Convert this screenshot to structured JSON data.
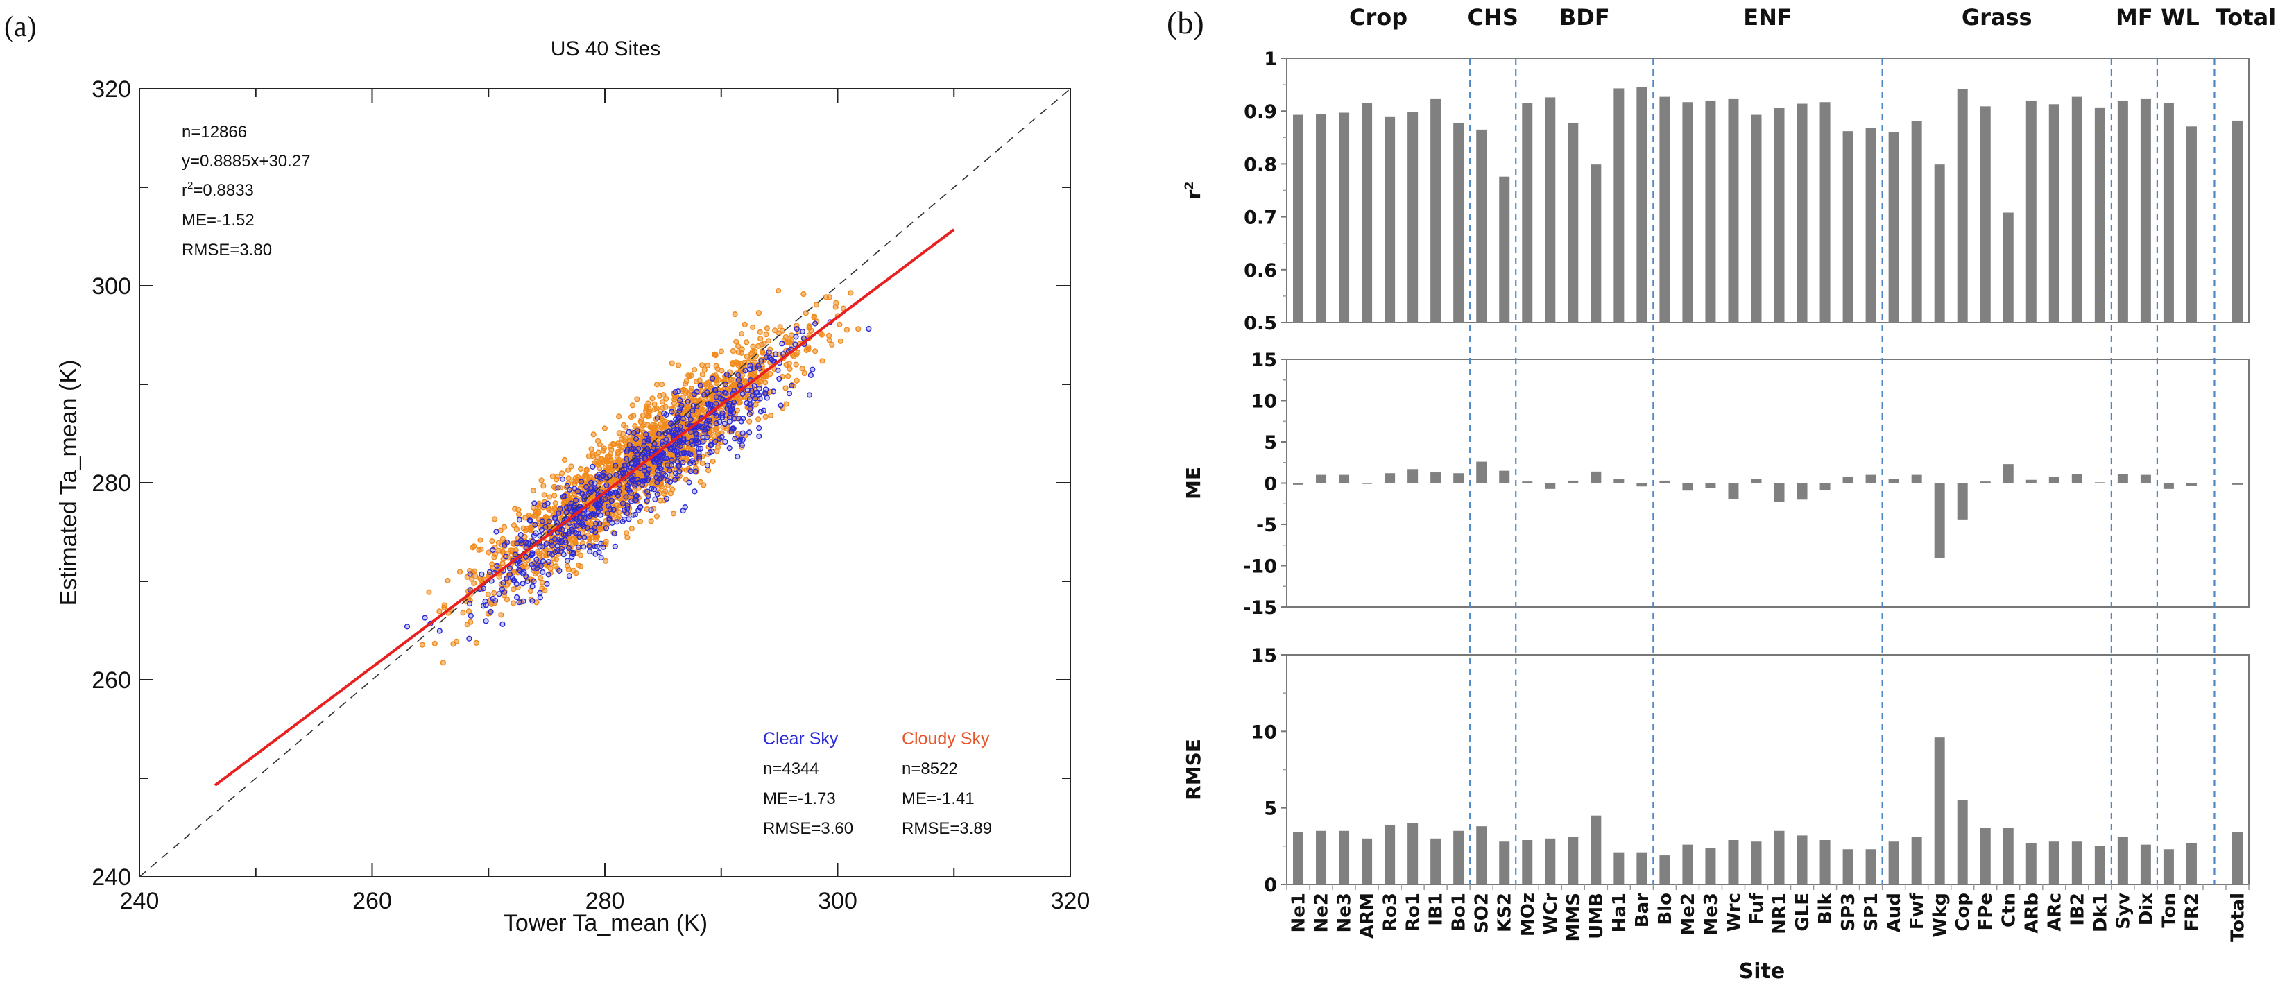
{
  "chart_data": [
    {
      "panel_label": "(a)",
      "type": "scatter",
      "title": "US 40 Sites",
      "xlabel": "Tower Ta_mean (K)",
      "ylabel": "Estimated Ta_mean (K)",
      "xlim": [
        240,
        320
      ],
      "ylim": [
        240,
        320
      ],
      "xticks": [
        "240",
        "260",
        "280",
        "300",
        "320"
      ],
      "yticks": [
        "240",
        "260",
        "280",
        "300",
        "320"
      ],
      "stats": [
        "n=12866",
        "y=0.8885x+30.27",
        "r",
        "=0.8833",
        "ME=-1.52",
        "RMSE=3.80"
      ],
      "r2_superscript": "2",
      "fit": {
        "slope": 0.8885,
        "intercept": 30.27,
        "x_range": [
          246.5,
          310
        ],
        "color": "#e82020"
      },
      "one_to_one_line": true,
      "series": [
        {
          "name": "Clear Sky",
          "color": "#2a2ad8",
          "n": 4344,
          "stats": [
            "n=4344",
            "ME=-1.73",
            "RMSE=3.60"
          ]
        },
        {
          "name": "Cloudy Sky",
          "color": "#f08a1c",
          "legend_color": "#e8542a",
          "n": 8522,
          "stats": [
            "n=8522",
            "ME=-1.41",
            "RMSE=3.89"
          ]
        }
      ]
    },
    {
      "panel_label": "(b)",
      "type": "bar",
      "xlabel": "Site",
      "bar_color": "#808080",
      "divider_color": "#4f86c6",
      "categories": [
        "Ne1",
        "Ne2",
        "Ne3",
        "ARM",
        "Ro3",
        "Ro1",
        "IB1",
        "Bo1",
        "SO2",
        "KS2",
        "MOz",
        "WCr",
        "MMS",
        "UMB",
        "Ha1",
        "Bar",
        "Blo",
        "Me2",
        "Me3",
        "Wrc",
        "Fuf",
        "NR1",
        "GLE",
        "Blk",
        "SP3",
        "SP1",
        "Aud",
        "Fwf",
        "Wkg",
        "Cop",
        "FPe",
        "Ctn",
        "ARb",
        "ARc",
        "IB2",
        "Dk1",
        "Syv",
        "Dix",
        "Ton",
        "FR2",
        "",
        "Total"
      ],
      "groups": [
        {
          "name": "Crop",
          "from": 0,
          "to": 7
        },
        {
          "name": "CHS",
          "from": 8,
          "to": 9
        },
        {
          "name": "BDF",
          "from": 10,
          "to": 15
        },
        {
          "name": "ENF",
          "from": 16,
          "to": 25
        },
        {
          "name": "Grass",
          "from": 26,
          "to": 35
        },
        {
          "name": "MF",
          "from": 36,
          "to": 37
        },
        {
          "name": "WL",
          "from": 38,
          "to": 39
        },
        {
          "name": "Total",
          "from": 41,
          "to": 41
        }
      ],
      "dividers_after_index": [
        7,
        9,
        15,
        25,
        35,
        37,
        40
      ],
      "panels": [
        {
          "ylabel": "r",
          "ylabel_sup": "2",
          "ylim": [
            0.5,
            1
          ],
          "yticks": [
            "0.5",
            "0.6",
            "0.7",
            "0.8",
            "0.9",
            "1"
          ],
          "tick_step": 0.1,
          "values": [
            0.893,
            0.895,
            0.897,
            0.916,
            0.89,
            0.898,
            0.924,
            0.878,
            0.865,
            0.776,
            0.916,
            0.926,
            0.878,
            0.799,
            0.943,
            0.946,
            0.927,
            0.917,
            0.92,
            0.924,
            0.893,
            0.906,
            0.914,
            0.917,
            0.862,
            0.868,
            0.86,
            0.881,
            0.799,
            0.941,
            0.909,
            0.708,
            0.92,
            0.913,
            0.927,
            0.907,
            0.92,
            0.924,
            0.915,
            0.871,
            null,
            0.882
          ]
        },
        {
          "ylabel": "ME",
          "ylim": [
            -15,
            15
          ],
          "yticks": [
            "-15",
            "-10",
            "-5",
            "0",
            "5",
            "10",
            "15"
          ],
          "tick_step": 5,
          "values": [
            -0.2,
            1.0,
            1.0,
            -0.1,
            1.2,
            1.7,
            1.3,
            1.2,
            2.6,
            1.5,
            0.2,
            -0.7,
            0.3,
            1.4,
            0.5,
            -0.4,
            0.3,
            -0.9,
            -0.6,
            -1.9,
            0.5,
            -2.3,
            -2.0,
            -0.8,
            0.8,
            1.0,
            0.5,
            1.0,
            -9.1,
            -4.4,
            0.2,
            2.3,
            0.4,
            0.8,
            1.1,
            0.1,
            1.1,
            1.0,
            -0.7,
            -0.3,
            null,
            -0.2
          ]
        },
        {
          "ylabel": "RMSE",
          "ylim": [
            0,
            15
          ],
          "yticks": [
            "0",
            "5",
            "10",
            "15"
          ],
          "tick_step": 5,
          "values": [
            3.4,
            3.5,
            3.5,
            3.0,
            3.9,
            4.0,
            3.0,
            3.5,
            3.8,
            2.8,
            2.9,
            3.0,
            3.1,
            4.5,
            2.1,
            2.1,
            1.9,
            2.6,
            2.4,
            2.9,
            2.8,
            3.5,
            3.2,
            2.9,
            2.3,
            2.3,
            2.8,
            3.1,
            9.6,
            5.5,
            3.7,
            3.7,
            2.7,
            2.8,
            2.8,
            2.5,
            3.1,
            2.6,
            2.3,
            2.7,
            null,
            3.4
          ]
        }
      ]
    }
  ]
}
